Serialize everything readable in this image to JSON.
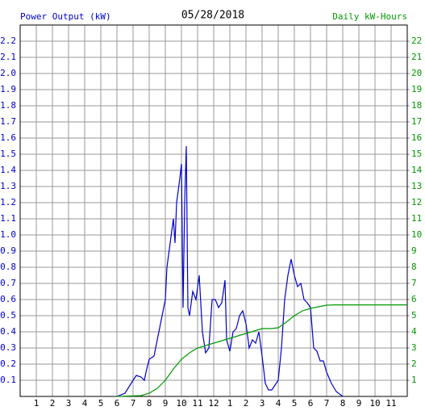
{
  "chart_data": {
    "type": "line",
    "title": "05/28/2018",
    "y_label": "Power Output (kW)",
    "y2_label": "Daily kW-Hours",
    "xlim": [
      0,
      24
    ],
    "xticks": [
      1,
      2,
      3,
      4,
      5,
      6,
      7,
      8,
      9,
      10,
      11,
      12,
      {
        "value": 13,
        "label": "1"
      },
      {
        "value": 14,
        "label": "2"
      },
      {
        "value": 15,
        "label": "3"
      },
      {
        "value": 16,
        "label": "4"
      },
      {
        "value": 17,
        "label": "5"
      },
      {
        "value": 18,
        "label": "6"
      },
      {
        "value": 19,
        "label": "7"
      },
      {
        "value": 20,
        "label": "8"
      },
      {
        "value": 21,
        "label": "9"
      },
      {
        "value": 22,
        "label": "10"
      },
      {
        "value": 23,
        "label": "11"
      }
    ],
    "ylim": [
      0,
      2.3
    ],
    "yticks": [
      0.1,
      0.2,
      0.3,
      0.4,
      0.5,
      0.6,
      0.7,
      0.8,
      0.9,
      {
        "value": 1,
        "label": "1.0"
      },
      1.1,
      1.2,
      1.3,
      1.4,
      1.5,
      1.6,
      1.7,
      1.8,
      1.9,
      {
        "value": 2,
        "label": "2.0"
      },
      2.1,
      2.2
    ],
    "y2lim": [
      0,
      23
    ],
    "y2ticks": [
      1,
      2,
      3,
      4,
      5,
      6,
      7,
      8,
      9,
      10,
      11,
      12,
      13,
      14,
      15,
      16,
      17,
      18,
      19,
      20,
      21,
      22
    ],
    "grid": true,
    "series": [
      {
        "name": "Power Output (kW)",
        "color": "#0000cc",
        "x": [
          6.0,
          6.5,
          7.0,
          7.2,
          7.5,
          7.7,
          7.8,
          8.0,
          8.3,
          8.5,
          8.7,
          8.9,
          9.0,
          9.1,
          9.3,
          9.5,
          9.6,
          9.7,
          9.9,
          10.0,
          10.1,
          10.2,
          10.3,
          10.4,
          10.5,
          10.7,
          10.9,
          11.1,
          11.3,
          11.5,
          11.7,
          11.9,
          12.1,
          12.3,
          12.5,
          12.7,
          12.8,
          13.0,
          13.2,
          13.4,
          13.6,
          13.8,
          14.0,
          14.2,
          14.4,
          14.6,
          14.8,
          15.0,
          15.2,
          15.4,
          15.6,
          15.8,
          16.0,
          16.2,
          16.4,
          16.6,
          16.8,
          17.0,
          17.2,
          17.4,
          17.6,
          17.8,
          18.0,
          18.2,
          18.4,
          18.6,
          18.8,
          19.0,
          19.3,
          19.6,
          20.0
        ],
        "values": [
          0,
          0.02,
          0.1,
          0.13,
          0.12,
          0.1,
          0.15,
          0.23,
          0.25,
          0.35,
          0.45,
          0.55,
          0.6,
          0.8,
          0.95,
          1.1,
          0.95,
          1.2,
          1.35,
          1.44,
          0.55,
          1.2,
          1.55,
          0.55,
          0.5,
          0.65,
          0.6,
          0.75,
          0.4,
          0.27,
          0.3,
          0.6,
          0.6,
          0.55,
          0.58,
          0.72,
          0.35,
          0.28,
          0.4,
          0.42,
          0.5,
          0.53,
          0.45,
          0.3,
          0.35,
          0.33,
          0.4,
          0.25,
          0.08,
          0.04,
          0.04,
          0.07,
          0.1,
          0.3,
          0.6,
          0.75,
          0.85,
          0.75,
          0.68,
          0.7,
          0.6,
          0.58,
          0.55,
          0.3,
          0.28,
          0.22,
          0.22,
          0.15,
          0.08,
          0.03,
          0
        ]
      },
      {
        "name": "Daily kW-Hours",
        "color": "#009900",
        "axis": "y2",
        "x": [
          6.0,
          7.5,
          8.0,
          8.5,
          9.0,
          9.5,
          10.0,
          10.5,
          11.0,
          12.0,
          13.0,
          14.0,
          15.0,
          15.5,
          16.0,
          16.5,
          17.0,
          17.5,
          18.0,
          18.5,
          19.0,
          19.5,
          24.0
        ],
        "values": [
          0,
          0.05,
          0.2,
          0.5,
          1.0,
          1.7,
          2.3,
          2.7,
          3.0,
          3.3,
          3.6,
          3.9,
          4.2,
          4.2,
          4.25,
          4.6,
          5.0,
          5.3,
          5.45,
          5.55,
          5.65,
          5.67,
          5.67
        ]
      }
    ]
  }
}
